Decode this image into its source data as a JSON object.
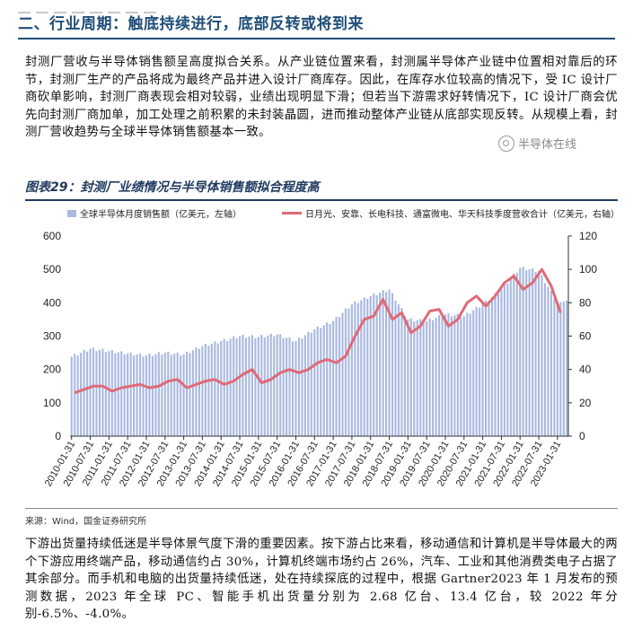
{
  "section": {
    "title": "二、行业周期：触底持续进行，底部反转或将到来"
  },
  "paragraph1": "封测厂营收与半导体销售额呈高度拟合关系。从产业链位置来看，封测属半导体产业链中位置相对靠后的环节，封测厂生产的产品将成为最终产品并进入设计厂商库存。因此，在库存水位较高的情况下，受 IC 设计厂商砍单影响，封测厂商表现会相对较弱，业绩出现明显下滑；但若当下游需求好转情况下，IC 设计厂商会优先向封测厂商加单，加工处理之前积累的未封装晶圆，进而推动整体产业链从底部实现反转。从规模上看，封测厂营收趋势与全球半导体销售额基本一致。",
  "watermark": "半导体在线",
  "figure": {
    "title": "图表29：封测厂业绩情况与半导体销售额拟合程度高",
    "source": "来源：Wind，国金证券研究所"
  },
  "colors": {
    "bar": "#a9b9e0",
    "line": "#e06a77",
    "accent": "#1f4e79"
  },
  "chart_data": {
    "type": "bar",
    "title": "",
    "series": [
      {
        "name": "全球半导体月度销售额（亿美元，左轴）",
        "type": "bar",
        "axis": "left"
      },
      {
        "name": "日月光、安靠、长电科技、通富微电、华天科技季度营收合计（亿美元，右轴）",
        "type": "line",
        "axis": "right"
      }
    ],
    "x_ticks": [
      "2010-01-31",
      "2010-07-31",
      "2011-01-31",
      "2011-07-31",
      "2012-01-31",
      "2012-07-31",
      "2013-01-31",
      "2013-07-31",
      "2014-01-31",
      "2014-07-31",
      "2015-01-31",
      "2015-07-31",
      "2016-01-31",
      "2016-07-31",
      "2017-01-31",
      "2017-07-31",
      "2018-01-31",
      "2018-07-31",
      "2019-01-31",
      "2019-07-31",
      "2020-01-31",
      "2020-07-31",
      "2021-01-31",
      "2021-07-31",
      "2022-01-31",
      "2022-07-31",
      "2023-01-31"
    ],
    "left_axis": {
      "min": 0,
      "max": 600,
      "ticks": [
        0,
        100,
        200,
        300,
        400,
        500,
        600
      ]
    },
    "right_axis": {
      "min": 0,
      "max": 120,
      "ticks": [
        0,
        20,
        40,
        60,
        80,
        100,
        120
      ]
    },
    "monthly_sales_semiannual": [
      238,
      262,
      255,
      248,
      242,
      250,
      245,
      270,
      285,
      300,
      298,
      305,
      285,
      320,
      345,
      395,
      420,
      440,
      350,
      345,
      365,
      360,
      395,
      440,
      505,
      495,
      400
    ],
    "bar_start": "2010-01",
    "bar_end": "2023-04",
    "quarterly_revenue": {
      "x": [
        "2010Q1",
        "2010Q2",
        "2010Q3",
        "2010Q4",
        "2011Q1",
        "2011Q2",
        "2011Q3",
        "2011Q4",
        "2012Q1",
        "2012Q2",
        "2012Q3",
        "2012Q4",
        "2013Q1",
        "2013Q2",
        "2013Q3",
        "2013Q4",
        "2014Q1",
        "2014Q2",
        "2014Q3",
        "2014Q4",
        "2015Q1",
        "2015Q2",
        "2015Q3",
        "2015Q4",
        "2016Q1",
        "2016Q2",
        "2016Q3",
        "2016Q4",
        "2017Q1",
        "2017Q2",
        "2017Q3",
        "2017Q4",
        "2018Q1",
        "2018Q2",
        "2018Q3",
        "2018Q4",
        "2019Q1",
        "2019Q2",
        "2019Q3",
        "2019Q4",
        "2020Q1",
        "2020Q2",
        "2020Q3",
        "2020Q4",
        "2021Q1",
        "2021Q2",
        "2021Q3",
        "2021Q4",
        "2022Q1",
        "2022Q2",
        "2022Q3",
        "2022Q4",
        "2023Q1"
      ],
      "y": [
        26,
        28,
        30,
        30,
        27,
        29,
        30,
        31,
        29,
        30,
        33,
        34,
        29,
        31,
        33,
        34,
        31,
        33,
        37,
        40,
        32,
        34,
        38,
        40,
        38,
        40,
        44,
        46,
        44,
        48,
        60,
        70,
        72,
        82,
        70,
        74,
        62,
        66,
        75,
        76,
        66,
        70,
        80,
        84,
        78,
        84,
        92,
        96,
        88,
        92,
        100,
        90,
        74
      ]
    },
    "legend_position": "top",
    "grid": false
  }
}
